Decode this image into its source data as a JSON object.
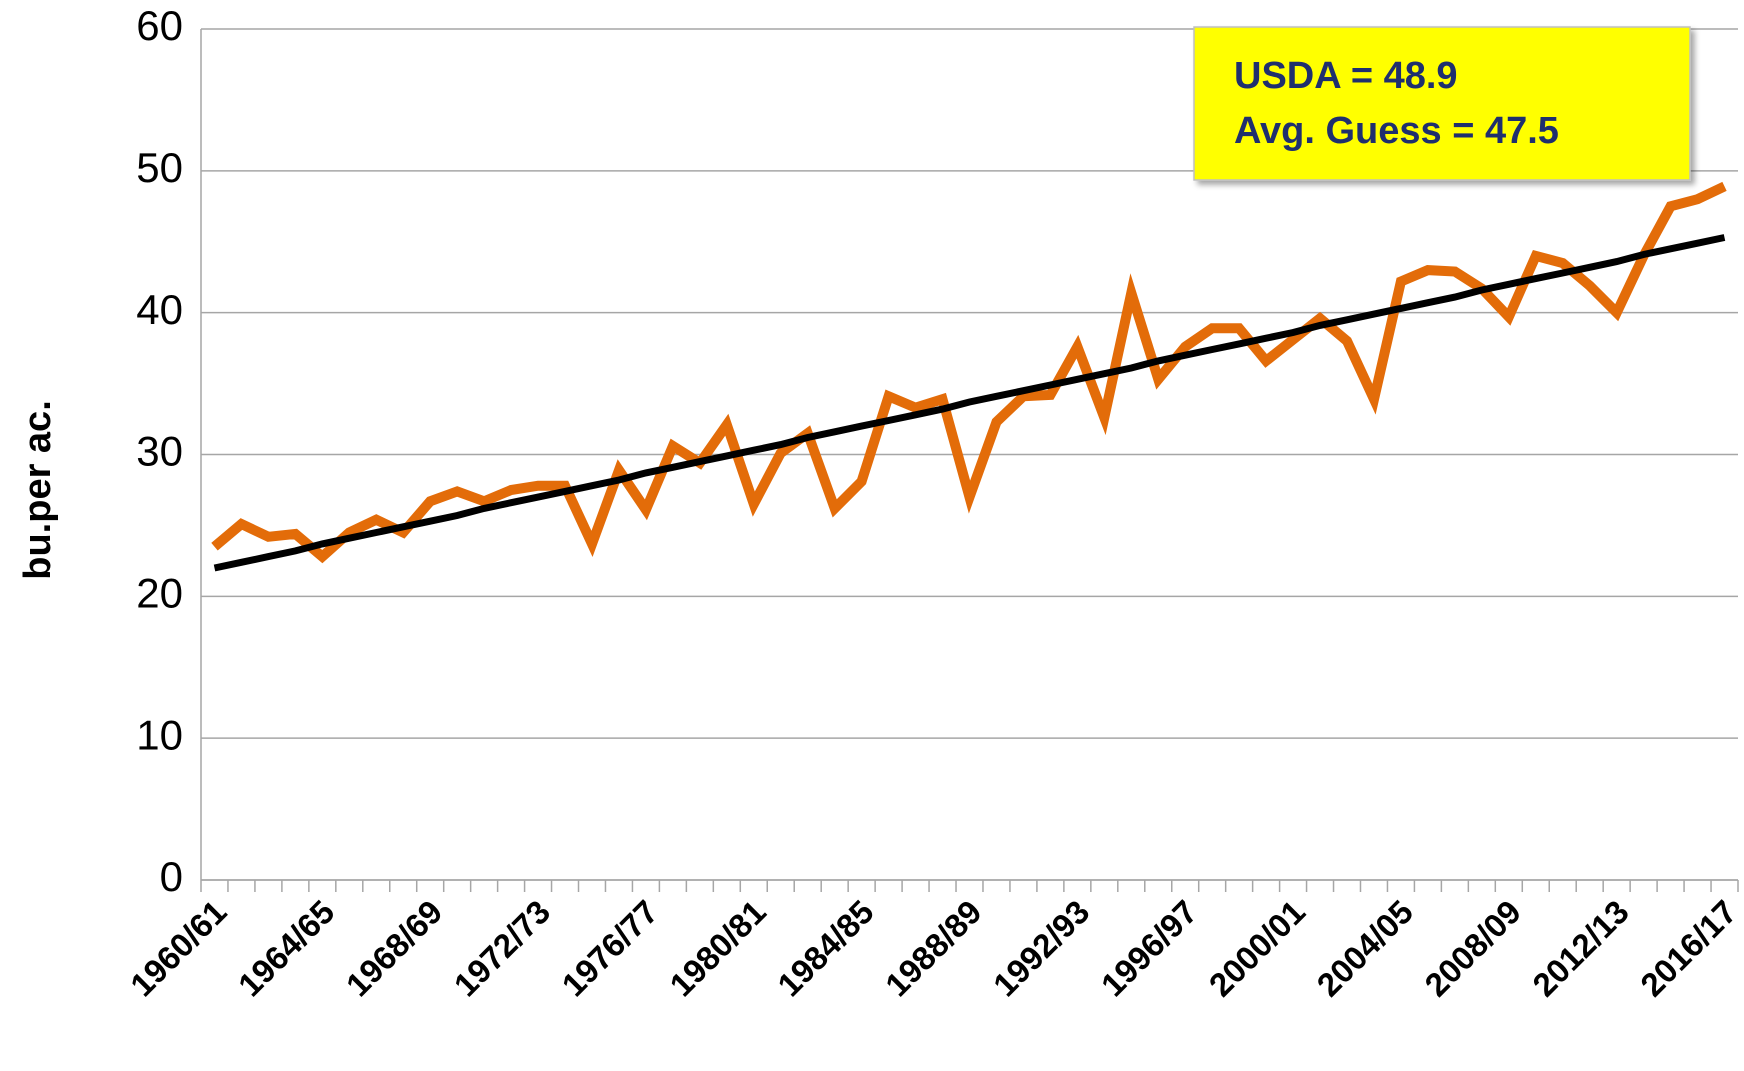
{
  "chart_data": {
    "type": "line",
    "ylabel": "bu.per ac.",
    "categories": [
      "1960/61",
      null,
      null,
      null,
      "1964/65",
      null,
      null,
      null,
      "1968/69",
      null,
      null,
      null,
      "1972/73",
      null,
      null,
      null,
      "1976/77",
      null,
      null,
      null,
      "1980/81",
      null,
      null,
      null,
      "1984/85",
      null,
      null,
      null,
      "1988/89",
      null,
      null,
      null,
      "1992/93",
      null,
      null,
      null,
      "1996/97",
      null,
      null,
      null,
      "2000/01",
      null,
      null,
      null,
      "2004/05",
      null,
      null,
      null,
      "2008/09",
      null,
      null,
      null,
      "2012/13",
      null,
      null,
      null,
      "2016/17"
    ],
    "series": [
      {
        "color": "#e36c09",
        "values": [
          23.5,
          25.1,
          24.2,
          24.4,
          22.8,
          24.5,
          25.4,
          24.5,
          26.7,
          27.4,
          26.7,
          27.5,
          27.8,
          27.8,
          23.7,
          28.9,
          26.1,
          30.6,
          29.4,
          32.1,
          26.5,
          30.1,
          31.5,
          26.2,
          28.1,
          34.1,
          33.3,
          33.9,
          27.0,
          32.3,
          34.1,
          34.2,
          37.6,
          32.6,
          41.4,
          35.3,
          37.6,
          38.9,
          38.9,
          36.6,
          38.1,
          39.6,
          38.0,
          33.9,
          42.2,
          43.0,
          42.9,
          41.7,
          39.7,
          44.0,
          43.5,
          41.9,
          40.0,
          44.0,
          47.5,
          48.0,
          48.9
        ]
      },
      {
        "color": "#000000",
        "values": [
          22.0,
          22.4,
          22.8,
          23.2,
          23.7,
          24.1,
          24.5,
          24.9,
          25.3,
          25.7,
          26.2,
          26.6,
          27.0,
          27.4,
          27.8,
          28.2,
          28.7,
          29.1,
          29.5,
          29.9,
          30.3,
          30.7,
          31.2,
          31.6,
          32.0,
          32.4,
          32.8,
          33.2,
          33.7,
          34.1,
          34.5,
          34.9,
          35.3,
          35.7,
          36.1,
          36.6,
          37.0,
          37.4,
          37.8,
          38.2,
          38.6,
          39.1,
          39.5,
          39.9,
          40.3,
          40.7,
          41.1,
          41.6,
          42.0,
          42.4,
          42.8,
          43.2,
          43.6,
          44.1,
          44.5,
          44.9,
          45.3
        ]
      }
    ],
    "annotation": [
      "USDA = 48.9",
      "Avg. Guess = 47.5"
    ],
    "ylim": [
      0,
      60
    ],
    "yticks": [
      0,
      10,
      20,
      30,
      40,
      50,
      60
    ],
    "grid": true
  }
}
